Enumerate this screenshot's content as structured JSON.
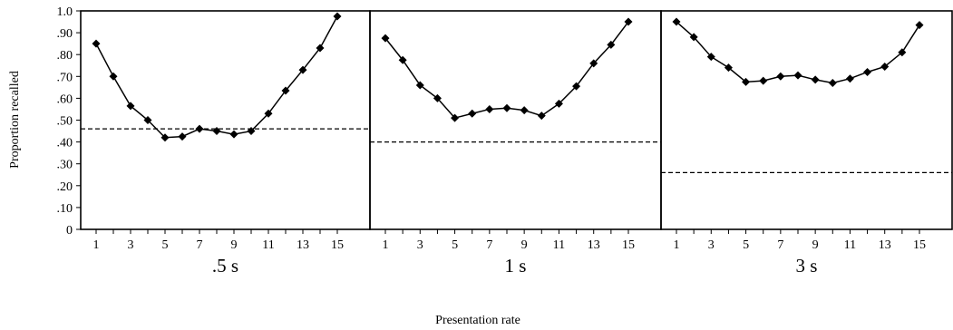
{
  "chart_data": {
    "type": "line",
    "ylabel": "Proportion recalled",
    "xlabel": "Presentation rate",
    "ylim": [
      0,
      1.0
    ],
    "yticks": [
      0,
      0.1,
      0.2,
      0.3,
      0.4,
      0.5,
      0.6,
      0.7,
      0.8,
      0.9,
      1.0
    ],
    "ytick_labels": [
      "0",
      ".10",
      ".20",
      ".30",
      ".40",
      ".50",
      ".60",
      ".70",
      ".80",
      ".90",
      "1.0"
    ],
    "x": [
      1,
      2,
      3,
      4,
      5,
      6,
      7,
      8,
      9,
      10,
      11,
      12,
      13,
      14,
      15
    ],
    "xtick_labels": [
      "1",
      "3",
      "5",
      "7",
      "9",
      "11",
      "13",
      "15"
    ],
    "panels": [
      {
        "title": ".5 s",
        "values": [
          0.85,
          0.7,
          0.565,
          0.5,
          0.42,
          0.425,
          0.46,
          0.45,
          0.435,
          0.45,
          0.53,
          0.635,
          0.73,
          0.83,
          0.975
        ],
        "reference_line": 0.46
      },
      {
        "title": "1 s",
        "values": [
          0.875,
          0.775,
          0.66,
          0.6,
          0.51,
          0.53,
          0.55,
          0.555,
          0.545,
          0.52,
          0.575,
          0.655,
          0.76,
          0.845,
          0.95
        ],
        "reference_line": 0.4
      },
      {
        "title": "3 s",
        "values": [
          0.95,
          0.88,
          0.79,
          0.74,
          0.675,
          0.68,
          0.7,
          0.705,
          0.685,
          0.67,
          0.69,
          0.72,
          0.745,
          0.81,
          0.935
        ],
        "reference_line": 0.26
      }
    ],
    "grid": false
  }
}
